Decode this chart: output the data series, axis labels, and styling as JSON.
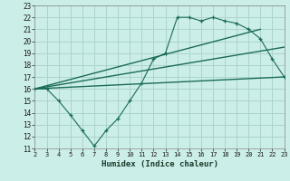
{
  "xlabel": "Humidex (Indice chaleur)",
  "bg_color": "#cceee8",
  "grid_color": "#aad4cc",
  "line_color": "#1a6b5a",
  "xlim": [
    2,
    23
  ],
  "ylim": [
    11,
    23
  ],
  "xticks": [
    2,
    3,
    4,
    5,
    6,
    7,
    8,
    9,
    10,
    11,
    12,
    13,
    14,
    15,
    16,
    17,
    18,
    19,
    20,
    21,
    22,
    23
  ],
  "yticks": [
    11,
    12,
    13,
    14,
    15,
    16,
    17,
    18,
    19,
    20,
    21,
    22,
    23
  ],
  "series1_x": [
    2,
    3,
    4,
    5,
    6,
    7,
    8,
    9,
    10,
    11,
    12,
    13,
    14,
    15,
    16,
    17,
    18,
    19,
    20,
    21,
    22,
    23
  ],
  "series1_y": [
    16,
    16,
    15.0,
    13.8,
    12.5,
    11.2,
    12.5,
    13.5,
    15.0,
    16.5,
    18.5,
    19.0,
    22.0,
    22.0,
    21.7,
    22.0,
    21.7,
    21.5,
    21.0,
    20.2,
    18.5,
    17.0
  ],
  "series2_x": [
    2,
    23
  ],
  "series2_y": [
    16.0,
    17.0
  ],
  "regline1_x": [
    2,
    21
  ],
  "regline1_y": [
    16.0,
    21.0
  ],
  "regline2_x": [
    2,
    23
  ],
  "regline2_y": [
    16.0,
    19.5
  ]
}
